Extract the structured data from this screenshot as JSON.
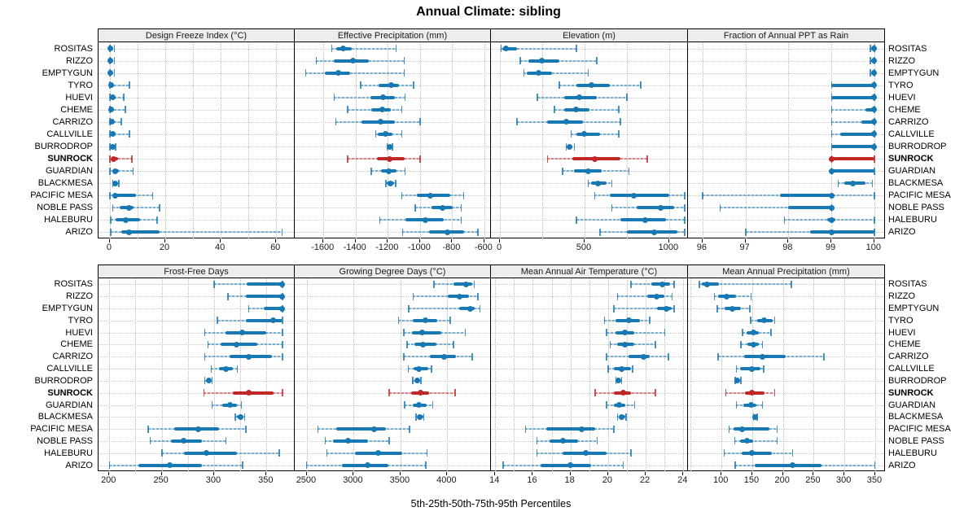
{
  "title": "Annual Climate: sibling",
  "footer": "5th-25th-50th-75th-95th Percentiles",
  "highlight_station": "SUNROCK",
  "colors": {
    "series_blue": "#1878b4",
    "highlight_red": "#c02828",
    "header_bg": "#ededed",
    "gridline": "#bdbdbd",
    "panel_border": "#000000"
  },
  "stations": [
    "ROSITAS",
    "RIZZO",
    "EMPTYGUN",
    "TYRO",
    "HUEVI",
    "CHEME",
    "CARRIZO",
    "CALLVILLE",
    "BURRODROP",
    "SUNROCK",
    "GUARDIAN",
    "BLACKMESA",
    "PACIFIC MESA",
    "NOBLE PASS",
    "HALEBURU",
    "ARIZO"
  ],
  "percentiles_shown": [
    "5th",
    "25th",
    "50th",
    "75th",
    "95th"
  ],
  "chart_data": [
    {
      "type": "percentile-dotplot",
      "title": "Design Freeze Index (°C)",
      "xlim": [
        -4.1,
        66.7
      ],
      "ticks": [
        0,
        20,
        40,
        60
      ],
      "grid": [
        0,
        10,
        20,
        30,
        40,
        50,
        60
      ],
      "values": [
        [
          0,
          0,
          0.3,
          0.8,
          1.5
        ],
        [
          0,
          0,
          0.3,
          0.8,
          1.5
        ],
        [
          0,
          0,
          0.3,
          0.8,
          1.5
        ],
        [
          0,
          0,
          0.5,
          1.5,
          7
        ],
        [
          0,
          0.3,
          1,
          2.2,
          5
        ],
        [
          0,
          0,
          0.5,
          1.5,
          5.5
        ],
        [
          0,
          0.2,
          0.8,
          1.6,
          4
        ],
        [
          0,
          0.4,
          1,
          2,
          7
        ],
        [
          0,
          0.5,
          1,
          1.5,
          2
        ],
        [
          0,
          0.5,
          1.2,
          3,
          7.8
        ],
        [
          0,
          0.8,
          2,
          3.2,
          8.3
        ],
        [
          1,
          1.4,
          2,
          2.7,
          3.2
        ],
        [
          0,
          0.8,
          2,
          9.5,
          15.3
        ],
        [
          1,
          3.5,
          7,
          8.6,
          17.9
        ],
        [
          0.3,
          2,
          5.6,
          11,
          17
        ],
        [
          0.3,
          4,
          7,
          18,
          62
        ]
      ]
    },
    {
      "type": "percentile-dotplot",
      "title": "Effective Precipitation (mm)",
      "xlim": [
        -1778,
        -559
      ],
      "ticks": [
        -1600,
        -1400,
        -1200,
        -1000,
        -800,
        -600
      ],
      "grid": [
        -1600,
        -1400,
        -1200,
        -1000,
        -800,
        -600
      ],
      "values": [
        [
          -1550,
          -1520,
          -1475,
          -1425,
          -1150
        ],
        [
          -1645,
          -1535,
          -1415,
          -1320,
          -1100
        ],
        [
          -1710,
          -1590,
          -1505,
          -1435,
          -1100
        ],
        [
          -1370,
          -1255,
          -1180,
          -1130,
          -1040
        ],
        [
          -1535,
          -1310,
          -1230,
          -1155,
          -1095
        ],
        [
          -1450,
          -1305,
          -1235,
          -1180,
          -1115
        ],
        [
          -1525,
          -1365,
          -1245,
          -1155,
          -1000
        ],
        [
          -1275,
          -1262,
          -1215,
          -1170,
          -1115
        ],
        [
          -1205,
          -1197,
          -1188,
          -1180,
          -1172
        ],
        [
          -1450,
          -1265,
          -1190,
          -1095,
          -1000
        ],
        [
          -1305,
          -1240,
          -1195,
          -1145,
          -1095
        ],
        [
          -1212,
          -1205,
          -1185,
          -1160,
          -1152
        ],
        [
          -1115,
          -1020,
          -938,
          -810,
          -730
        ],
        [
          -1030,
          -928,
          -860,
          -795,
          -745
        ],
        [
          -1250,
          -1090,
          -965,
          -850,
          -745
        ],
        [
          -1110,
          -945,
          -830,
          -725,
          -640
        ]
      ]
    },
    {
      "type": "percentile-dotplot",
      "title": "Elevation (m)",
      "xlim": [
        -53,
        1111
      ],
      "ticks": [
        0,
        500,
        1000
      ],
      "grid": [
        0,
        250,
        500,
        750,
        1000
      ],
      "values": [
        [
          5,
          12,
          37,
          99,
          450
        ],
        [
          120,
          170,
          250,
          350,
          570
        ],
        [
          140,
          160,
          230,
          310,
          520
        ],
        [
          350,
          450,
          540,
          650,
          830
        ],
        [
          220,
          380,
          470,
          570,
          750
        ],
        [
          320,
          380,
          450,
          530,
          700
        ],
        [
          100,
          280,
          390,
          490,
          710
        ],
        [
          420,
          450,
          500,
          590,
          700
        ],
        [
          390,
          400,
          410,
          420,
          440
        ],
        [
          280,
          430,
          560,
          710,
          870
        ],
        [
          370,
          440,
          520,
          600,
          760
        ],
        [
          520,
          540,
          580,
          630,
          660
        ],
        [
          560,
          650,
          790,
          1000,
          1090
        ],
        [
          660,
          810,
          950,
          1030,
          1090
        ],
        [
          450,
          710,
          860,
          980,
          1090
        ],
        [
          590,
          750,
          910,
          1050,
          1090
        ]
      ]
    },
    {
      "type": "percentile-dotplot",
      "title": "Fraction of Annual PPT as Rain",
      "xlim": [
        95.66,
        100.25
      ],
      "ticks": [
        96,
        97,
        98,
        99,
        100
      ],
      "grid": [
        96,
        97,
        98,
        99,
        100
      ],
      "values": [
        [
          99.9,
          100,
          100,
          100,
          100
        ],
        [
          99.9,
          100,
          100,
          100,
          100
        ],
        [
          99.9,
          100,
          100,
          100,
          100
        ],
        [
          99,
          99,
          100,
          100,
          100
        ],
        [
          99,
          99,
          100,
          100,
          100
        ],
        [
          99,
          99.8,
          100,
          100,
          100
        ],
        [
          99,
          99.7,
          100,
          100,
          100
        ],
        [
          99,
          99.2,
          100,
          100,
          100
        ],
        [
          99,
          99,
          100,
          100,
          100
        ],
        [
          99,
          99,
          99,
          100,
          100
        ],
        [
          99,
          99,
          99,
          100,
          100
        ],
        [
          99.15,
          99.3,
          99.5,
          99.8,
          99.95
        ],
        [
          96,
          97.8,
          99,
          99,
          100
        ],
        [
          96.4,
          98,
          99,
          99,
          99
        ],
        [
          97.9,
          98.9,
          99,
          99.1,
          100
        ],
        [
          97,
          98.5,
          99,
          100,
          100
        ]
      ]
    },
    {
      "type": "percentile-dotplot",
      "title": "Frost-Free Days",
      "xlim": [
        189.7,
        376.9
      ],
      "ticks": [
        200,
        250,
        300,
        350
      ],
      "grid": [
        200,
        225,
        250,
        275,
        300,
        325,
        350
      ],
      "values": [
        [
          300,
          331,
          365,
          365,
          365
        ],
        [
          313,
          330,
          365,
          365,
          365
        ],
        [
          333,
          347,
          365,
          365,
          365
        ],
        [
          303,
          330,
          356,
          365,
          365
        ],
        [
          291,
          311,
          327,
          350,
          365
        ],
        [
          294,
          306,
          321,
          341,
          365
        ],
        [
          291,
          315,
          333,
          355,
          365
        ],
        [
          297,
          305,
          311,
          318,
          322
        ],
        [
          291,
          293,
          295,
          297,
          298
        ],
        [
          290,
          318,
          333,
          357,
          365
        ],
        [
          298,
          308,
          315,
          322,
          326
        ],
        [
          320,
          322,
          325,
          327,
          329
        ],
        [
          237,
          262,
          285,
          305,
          330
        ],
        [
          239,
          259,
          271,
          288,
          311
        ],
        [
          250,
          271,
          293,
          322,
          362
        ],
        [
          200,
          228,
          258,
          288,
          327
        ]
      ]
    },
    {
      "type": "percentile-dotplot",
      "title": "Growing Degree Days (°C)",
      "xlim": [
        2370,
        4466
      ],
      "ticks": [
        2500,
        3000,
        3500,
        4000
      ],
      "grid": [
        2500,
        3000,
        3500,
        4000
      ],
      "values": [
        [
          3855,
          4065,
          4200,
          4265,
          4285
        ],
        [
          3635,
          4005,
          4130,
          4230,
          4325
        ],
        [
          3585,
          4130,
          4245,
          4290,
          4345
        ],
        [
          3475,
          3635,
          3765,
          3890,
          4030
        ],
        [
          3535,
          3620,
          3730,
          3935,
          4190
        ],
        [
          3570,
          3650,
          3740,
          3885,
          4065
        ],
        [
          3535,
          3810,
          3970,
          4090,
          4265
        ],
        [
          3580,
          3640,
          3700,
          3800,
          3830
        ],
        [
          3630,
          3655,
          3675,
          3700,
          3715
        ],
        [
          3375,
          3615,
          3710,
          3805,
          4080
        ],
        [
          3540,
          3630,
          3695,
          3775,
          3840
        ],
        [
          3665,
          3680,
          3705,
          3740,
          3748
        ],
        [
          2615,
          2815,
          3220,
          3340,
          3595
        ],
        [
          2695,
          2775,
          2940,
          3150,
          3375
        ],
        [
          2710,
          3015,
          3265,
          3515,
          3780
        ],
        [
          2495,
          2875,
          3145,
          3370,
          3770
        ]
      ]
    },
    {
      "type": "percentile-dotplot",
      "title": "Mean Annual Air Temperature (°C)",
      "xlim": [
        13.77,
        24.25
      ],
      "ticks": [
        14,
        16,
        18,
        20,
        22,
        24
      ],
      "grid": [
        14,
        15,
        16,
        17,
        18,
        19,
        20,
        21,
        22,
        23,
        24
      ],
      "values": [
        [
          21.2,
          22.3,
          22.9,
          23.3,
          23.5
        ],
        [
          20.5,
          22.1,
          22.6,
          23.0,
          23.4
        ],
        [
          20.3,
          22.6,
          23.1,
          23.4,
          23.5
        ],
        [
          19.8,
          20.4,
          21.1,
          21.7,
          22.2
        ],
        [
          19.9,
          20.4,
          20.9,
          21.4,
          23.0
        ],
        [
          20.1,
          20.5,
          20.9,
          21.4,
          22.5
        ],
        [
          19.9,
          21.1,
          21.9,
          22.2,
          23.2
        ],
        [
          20.0,
          20.3,
          20.7,
          21.2,
          21.3
        ],
        [
          20.4,
          20.5,
          20.55,
          20.6,
          20.7
        ],
        [
          19.3,
          20.3,
          20.8,
          21.2,
          22.5
        ],
        [
          19.9,
          20.3,
          20.6,
          20.9,
          21.4
        ],
        [
          20.5,
          20.6,
          20.7,
          20.9,
          20.95
        ],
        [
          15.6,
          16.7,
          18.6,
          19.3,
          20.3
        ],
        [
          16.2,
          16.9,
          17.6,
          18.4,
          19.4
        ],
        [
          16.2,
          17.6,
          18.8,
          19.9,
          21.2
        ],
        [
          14.4,
          16.4,
          18.0,
          19.1,
          20.8
        ]
      ]
    },
    {
      "type": "percentile-dotplot",
      "title": "Mean Annual Precipitation (mm)",
      "xlim": [
        45.5,
        365.9
      ],
      "ticks": [
        100,
        150,
        200,
        250,
        300,
        350
      ],
      "grid": [
        50,
        100,
        150,
        200,
        250,
        300,
        350
      ],
      "values": [
        [
          64,
          68,
          76,
          96,
          213
        ],
        [
          88,
          94,
          108,
          123,
          148
        ],
        [
          93,
          105,
          118,
          132,
          146
        ],
        [
          147,
          158,
          169,
          183,
          186
        ],
        [
          134,
          141,
          152,
          161,
          180
        ],
        [
          131,
          142,
          152,
          161,
          166
        ],
        [
          94,
          137,
          167,
          204,
          266
        ],
        [
          124,
          130,
          149,
          163,
          168
        ],
        [
          122,
          124,
          126,
          128,
          131
        ],
        [
          107,
          138,
          150,
          170,
          186
        ],
        [
          124,
          136,
          148,
          157,
          166
        ],
        [
          152,
          154,
          155,
          157,
          158
        ],
        [
          112,
          119,
          133,
          178,
          190
        ],
        [
          121,
          130,
          141,
          152,
          190
        ],
        [
          104,
          133,
          150,
          182,
          215
        ],
        [
          122,
          154,
          215,
          263,
          349
        ]
      ]
    }
  ]
}
